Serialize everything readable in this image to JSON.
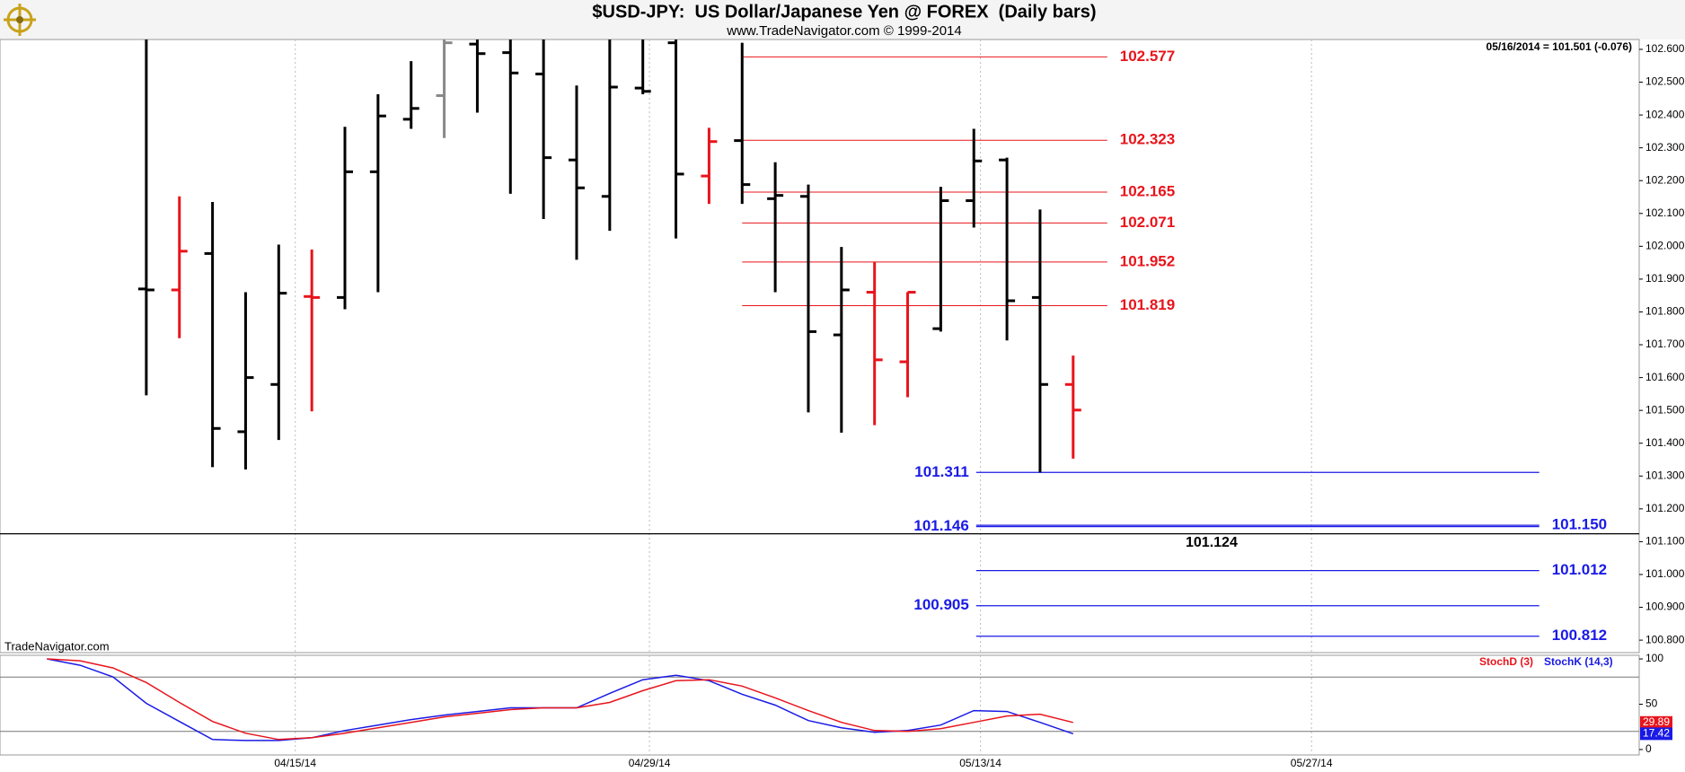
{
  "chart_data": [
    {
      "type": "ohlc",
      "title": "$USD-JPY:  US Dollar/Japanese Yen @ FOREX  (Daily bars)",
      "subtitle": "www.TradeNavigator.com © 1999-2014",
      "annotation": "05/16/2014 = 101.501 (-0.076)",
      "watermark": "TradeNavigator.com",
      "x": [
        0,
        1,
        2,
        3,
        4,
        5,
        6,
        7,
        8,
        9,
        10,
        11,
        12,
        13,
        14,
        15,
        16,
        17,
        18,
        19,
        20,
        21,
        22,
        23,
        24,
        25,
        26,
        27,
        28
      ],
      "open": [
        101.87,
        101.867,
        101.978,
        101.435,
        101.579,
        101.847,
        101.844,
        102.227,
        102.387,
        102.459,
        102.616,
        102.59,
        102.525,
        102.263,
        102.152,
        102.482,
        102.62,
        102.214,
        102.322,
        102.145,
        102.152,
        101.73,
        101.86,
        101.648,
        101.749,
        102.139,
        102.263,
        101.844,
        101.579
      ],
      "high": [
        102.7,
        102.152,
        102.135,
        101.86,
        102.005,
        101.99,
        102.364,
        102.463,
        102.564,
        102.63,
        102.7,
        102.7,
        102.7,
        102.49,
        102.7,
        102.7,
        102.7,
        102.361,
        102.62,
        102.256,
        102.188,
        101.998,
        101.952,
        101.86,
        102.181,
        102.358,
        102.27,
        102.112,
        101.667
      ],
      "low": [
        101.546,
        101.72,
        101.327,
        101.32,
        101.41,
        101.497,
        101.808,
        101.86,
        102.358,
        102.33,
        102.407,
        102.16,
        102.083,
        101.959,
        102.047,
        102.463,
        102.024,
        102.129,
        102.129,
        101.86,
        101.494,
        101.432,
        101.455,
        101.54,
        101.74,
        102.057,
        101.713,
        101.311,
        101.353
      ],
      "close": [
        101.867,
        101.985,
        101.445,
        101.6,
        101.857,
        101.844,
        102.227,
        102.397,
        102.42,
        102.62,
        102.587,
        102.528,
        102.27,
        102.178,
        102.485,
        102.472,
        102.22,
        102.319,
        102.188,
        102.155,
        101.74,
        101.867,
        101.654,
        101.86,
        102.139,
        102.26,
        101.834,
        101.579,
        101.501
      ],
      "colors": [
        "#000000",
        "#e8141c",
        "#000000",
        "#000000",
        "#000000",
        "#e8141c",
        "#000000",
        "#000000",
        "#000000",
        "#888888",
        "#000000",
        "#000000",
        "#000000",
        "#000000",
        "#000000",
        "#000000",
        "#000000",
        "#e8141c",
        "#000000",
        "#000000",
        "#000000",
        "#000000",
        "#e8141c",
        "#e8141c",
        "#000000",
        "#000000",
        "#000000",
        "#000000",
        "#e8141c"
      ],
      "resistance_levels": {
        "color": "#e8141c",
        "values": [
          102.577,
          102.323,
          102.165,
          102.071,
          101.952,
          101.819
        ]
      },
      "support_levels": {
        "color": "#1a1ae6",
        "levels": [
          {
            "value": 101.311,
            "side": "left"
          },
          {
            "value": 101.146,
            "side": "left"
          },
          {
            "value": 101.15,
            "label": "101.150",
            "side": "right"
          },
          {
            "value": 101.012,
            "side": "right"
          },
          {
            "value": 100.905,
            "side": "left"
          },
          {
            "value": 100.812,
            "side": "right"
          }
        ]
      },
      "reference_level": {
        "color": "#000000",
        "value": 101.124
      },
      "xlim": [
        -4.42,
        45.1
      ],
      "ylim": [
        100.762,
        102.63
      ],
      "yticks": [
        {
          "value": 100.8,
          "label": "100.800"
        },
        {
          "value": 100.9,
          "label": "100.900"
        },
        {
          "value": 101.0,
          "label": "101.000"
        },
        {
          "value": 101.1,
          "label": "101.100"
        },
        {
          "value": 101.2,
          "label": "101.200"
        },
        {
          "value": 101.3,
          "label": "101.300"
        },
        {
          "value": 101.4,
          "label": "101.400"
        },
        {
          "value": 101.5,
          "label": "101.500"
        },
        {
          "value": 101.6,
          "label": "101.600"
        },
        {
          "value": 101.7,
          "label": "101.700"
        },
        {
          "value": 101.8,
          "label": "101.800"
        },
        {
          "value": 101.9,
          "label": "101.900"
        },
        {
          "value": 102.0,
          "label": "102.000"
        },
        {
          "value": 102.1,
          "label": "102.100"
        },
        {
          "value": 102.2,
          "label": "102.200"
        },
        {
          "value": 102.3,
          "label": "102.300"
        },
        {
          "value": 102.4,
          "label": "102.400"
        },
        {
          "value": 102.5,
          "label": "102.500"
        },
        {
          "value": 102.6,
          "label": "102.600"
        }
      ]
    },
    {
      "type": "line",
      "x": [
        -3,
        -2,
        -1,
        0,
        1,
        2,
        3,
        4,
        5,
        6,
        7,
        8,
        9,
        10,
        11,
        12,
        13,
        14,
        15,
        16,
        17,
        18,
        19,
        20,
        21,
        22,
        23,
        24,
        25,
        26,
        27,
        28
      ],
      "series": [
        {
          "name": "StochD (3)",
          "color": "#e8141c",
          "values": [
            100,
            98,
            90,
            74,
            52,
            31,
            18,
            11,
            13,
            18,
            24,
            30,
            36,
            40,
            44,
            46,
            46,
            52,
            65,
            76,
            77,
            70,
            57,
            43,
            30,
            21,
            20,
            23,
            30,
            37,
            39,
            29.89
          ]
        },
        {
          "name": "StochK (14,3)",
          "color": "#1a1ae6",
          "values": [
            100,
            93,
            80,
            51,
            31,
            11,
            10,
            10,
            13,
            21,
            27,
            33,
            38,
            42,
            46,
            46,
            46,
            62,
            77,
            82,
            76,
            61,
            49,
            32,
            24,
            19,
            21,
            27,
            43,
            42,
            30,
            17.42
          ]
        }
      ],
      "reference_lines": [
        80,
        20
      ],
      "xlim": [
        -4.42,
        45.1
      ],
      "ylim": [
        -6,
        104
      ],
      "yticks": [
        0,
        50,
        100
      ],
      "xticks": [
        {
          "value": 4.5,
          "label": "04/15/14"
        },
        {
          "value": 15.2,
          "label": "04/29/14"
        },
        {
          "value": 25.2,
          "label": "05/13/14"
        },
        {
          "value": 35.2,
          "label": "05/27/14"
        }
      ]
    }
  ]
}
